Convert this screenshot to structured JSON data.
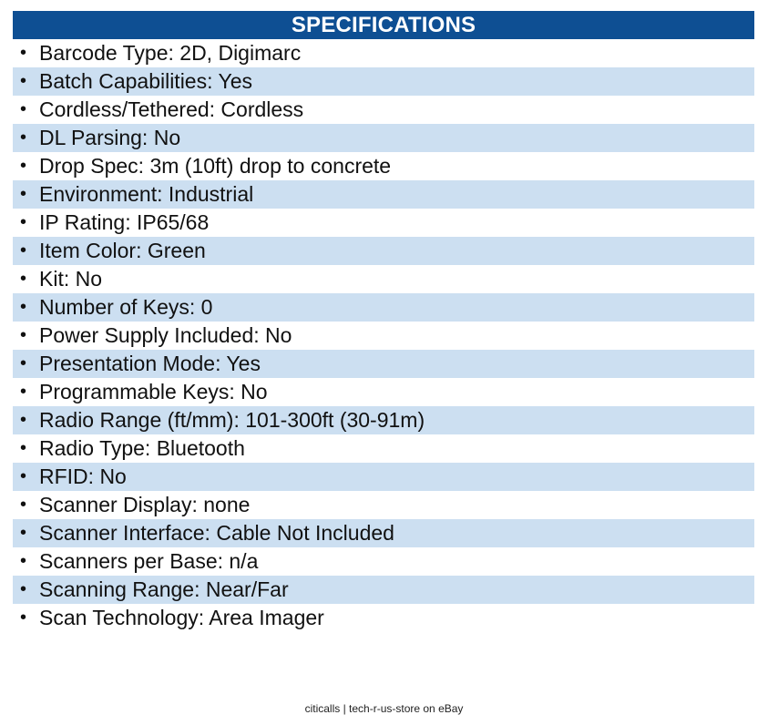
{
  "header": {
    "title": "SPECIFICATIONS"
  },
  "specs": [
    "Barcode Type: 2D, Digimarc",
    "Batch Capabilities: Yes",
    "Cordless/Tethered: Cordless",
    "DL Parsing: No",
    "Drop Spec: 3m (10ft) drop to concrete",
    "Environment: Industrial",
    "IP Rating: IP65/68",
    "Item Color: Green",
    "Kit: No",
    "Number of Keys: 0",
    "Power Supply Included: No",
    "Presentation Mode: Yes",
    "Programmable Keys: No",
    "Radio Range (ft/mm): 101-300ft (30-91m)",
    "Radio Type: Bluetooth",
    "RFID: No",
    "Scanner Display: none",
    "Scanner Interface: Cable Not Included",
    "Scanners per Base: n/a",
    "Scanning Range: Near/Far",
    "Scan Technology: Area Imager"
  ],
  "bullet": "•",
  "footer": {
    "text": "citicalls | tech-r-us-store on eBay"
  },
  "colors": {
    "header_bg": "#0e4f93",
    "stripe_bg": "#ccdff1"
  }
}
